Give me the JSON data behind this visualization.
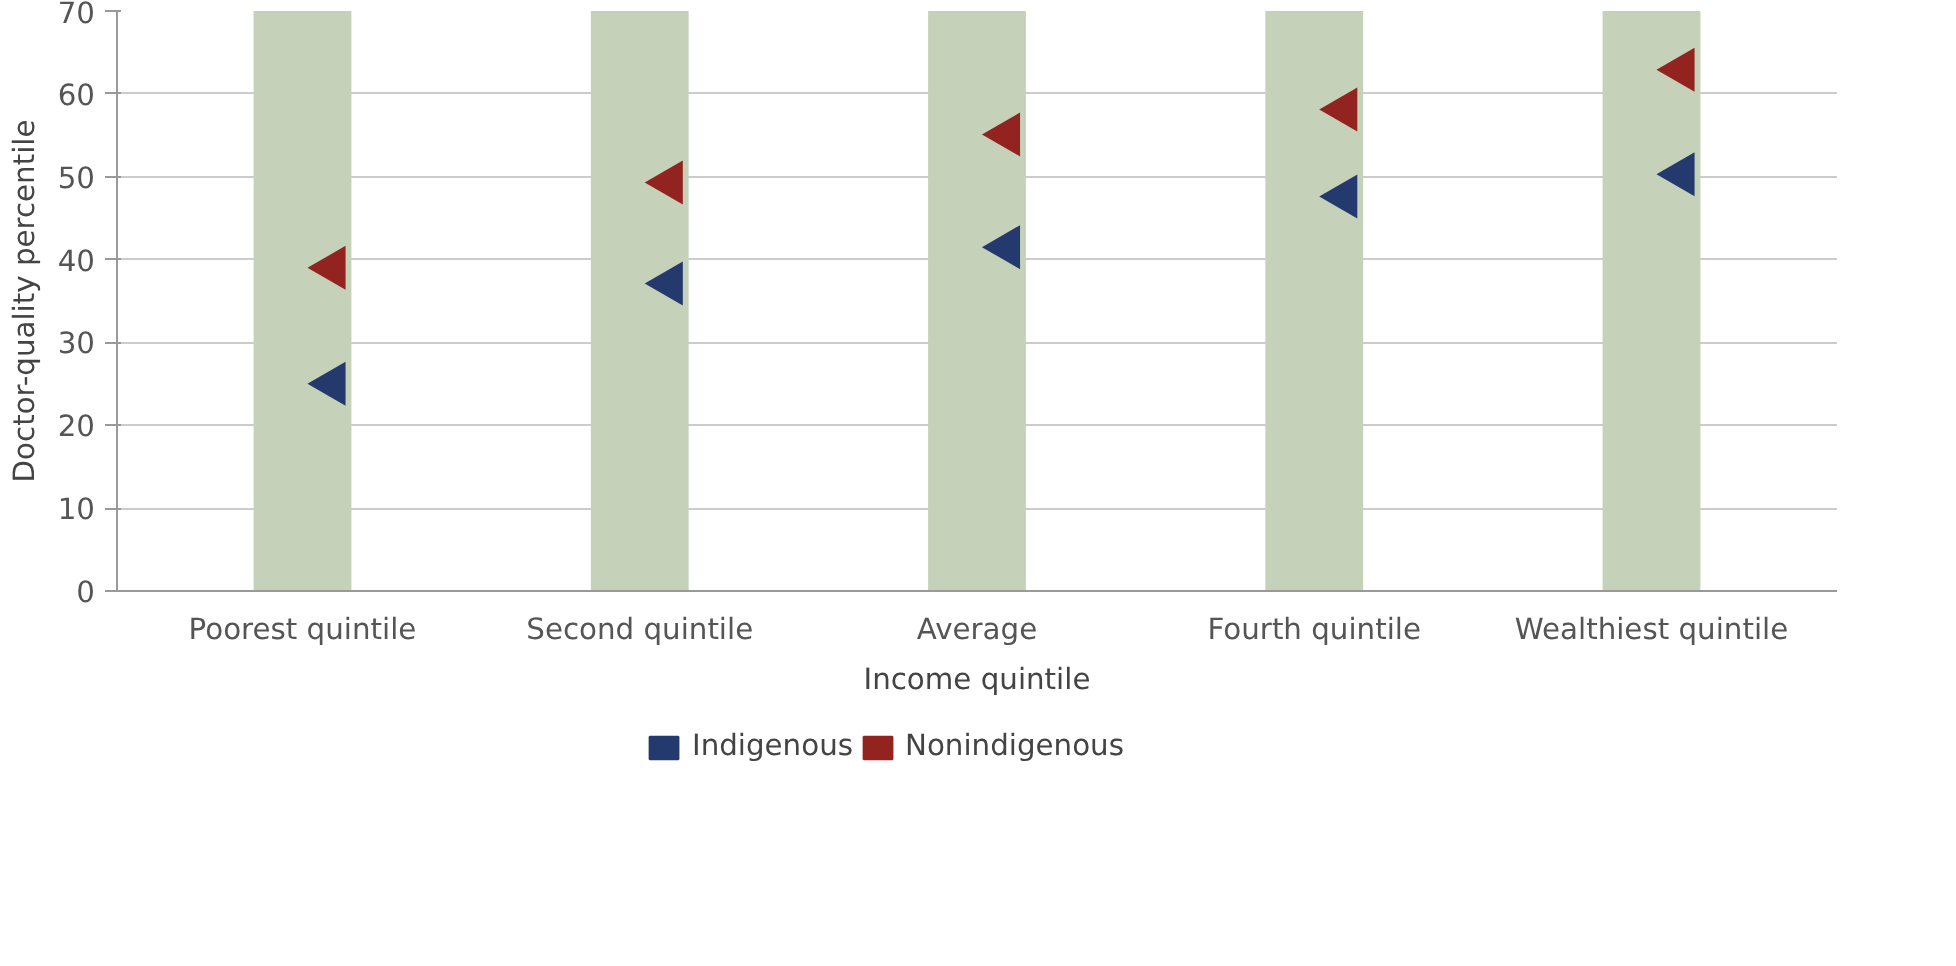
{
  "chart_data": {
    "type": "scatter",
    "xlabel": "Income quintile",
    "ylabel": "Doctor-quality percentile",
    "categories": [
      "Poorest quintile",
      "Second quintile",
      "Average",
      "Fourth quintile",
      "Wealthiest quintile"
    ],
    "series": [
      {
        "type": "bar",
        "color": "#c5d2b9",
        "values": [
          70,
          70,
          70,
          70,
          70
        ]
      },
      {
        "name": "Indigenous",
        "color": "#243a6e",
        "values": [
          25,
          37.1,
          41.5,
          47.6,
          50.3
        ]
      },
      {
        "name": "Nonindigenous",
        "color": "#93231e",
        "values": [
          39,
          49.3,
          55.1,
          58.1,
          62.9
        ]
      }
    ],
    "marker": "triangle",
    "ylim": [
      0,
      70
    ],
    "yticks": [
      0,
      10,
      20,
      30,
      40,
      50,
      60,
      70
    ],
    "grid": "y",
    "legend": "bottom"
  }
}
